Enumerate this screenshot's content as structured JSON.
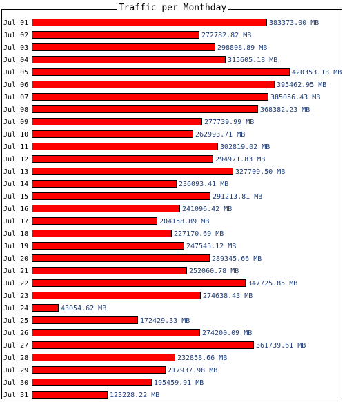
{
  "chart_data": {
    "type": "bar",
    "orientation": "horizontal",
    "title": "Traffic per Monthday",
    "unit": "MB",
    "xlim": [
      0,
      420353.13
    ],
    "categories": [
      "Jul 01",
      "Jul 02",
      "Jul 03",
      "Jul 04",
      "Jul 05",
      "Jul 06",
      "Jul 07",
      "Jul 08",
      "Jul 09",
      "Jul 10",
      "Jul 11",
      "Jul 12",
      "Jul 13",
      "Jul 14",
      "Jul 15",
      "Jul 16",
      "Jul 17",
      "Jul 18",
      "Jul 19",
      "Jul 20",
      "Jul 21",
      "Jul 22",
      "Jul 23",
      "Jul 24",
      "Jul 25",
      "Jul 26",
      "Jul 27",
      "Jul 28",
      "Jul 29",
      "Jul 30",
      "Jul 31"
    ],
    "values": [
      383373.0,
      272782.82,
      298808.89,
      315605.18,
      420353.13,
      395462.95,
      385056.43,
      368382.23,
      277739.99,
      262993.71,
      302819.02,
      294971.83,
      327709.5,
      236093.41,
      291213.81,
      241096.42,
      204158.89,
      227170.69,
      247545.12,
      289345.66,
      252060.78,
      347725.85,
      274638.43,
      43054.62,
      172429.33,
      274200.09,
      361739.61,
      232858.66,
      217937.98,
      195459.91,
      123228.22
    ],
    "value_labels": [
      "383373.00 MB",
      "272782.82 MB",
      "298808.89 MB",
      "315605.18 MB",
      "420353.13 MB",
      "395462.95 MB",
      "385056.43 MB",
      "368382.23 MB",
      "277739.99 MB",
      "262993.71 MB",
      "302819.02 MB",
      "294971.83 MB",
      "327709.50 MB",
      "236093.41 MB",
      "291213.81 MB",
      "241096.42 MB",
      "204158.89 MB",
      "227170.69 MB",
      "247545.12 MB",
      "289345.66 MB",
      "252060.78 MB",
      "347725.85 MB",
      "274638.43 MB",
      "43054.62 MB",
      "172429.33 MB",
      "274200.09 MB",
      "361739.61 MB",
      "232858.66 MB",
      "217937.98 MB",
      "195459.91 MB",
      "123228.22 MB"
    ],
    "colors": {
      "bar": "#ff0000",
      "bar_border": "#000000",
      "value_text": "#1e3c78",
      "label_text": "#000000"
    },
    "grid": false,
    "legend": "none"
  }
}
